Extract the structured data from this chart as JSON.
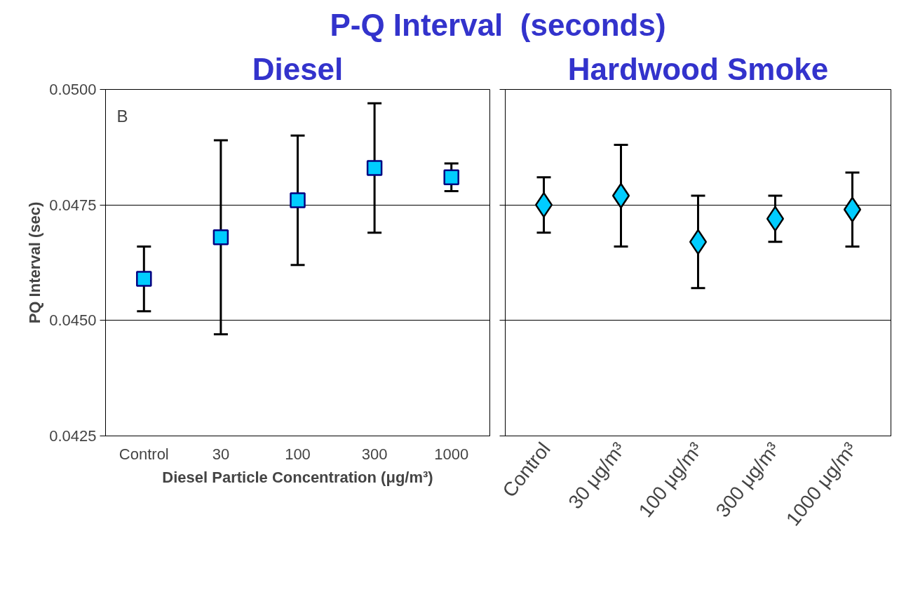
{
  "chart_data": [
    {
      "type": "scatter",
      "title": "P-Q Interval  (seconds)",
      "subtitle": "Diesel",
      "ylabel": "PQ Interval (sec)",
      "xlabel": "Diesel Particle Concentration (μg/m³)",
      "categories": [
        "Control",
        "30",
        "100",
        "300",
        "1000"
      ],
      "values": [
        0.0459,
        0.0468,
        0.0476,
        0.0483,
        0.0481
      ],
      "errors": [
        [
          0.0452,
          0.0466
        ],
        [
          0.0447,
          0.0489
        ],
        [
          0.0462,
          0.049
        ],
        [
          0.0469,
          0.0497
        ],
        [
          0.0478,
          0.0484
        ]
      ],
      "color": "#00ccff",
      "marker": "square",
      "grid": "y",
      "ylim": [
        0.0425,
        0.05
      ],
      "yticks": [
        {
          "value": 0.0425,
          "label": "0.0425"
        },
        {
          "value": 0.045,
          "label": "0.0450"
        },
        {
          "value": 0.0475,
          "label": "0.0475"
        },
        {
          "value": 0.05,
          "label": "0.0500"
        }
      ],
      "annotations": [
        "B"
      ]
    },
    {
      "type": "scatter",
      "subtitle": "Hardwood Smoke",
      "categories": [
        "Control",
        "30 μg/m³",
        "100 μg/m³",
        "300 μg/m³",
        "1000 μg/m³"
      ],
      "values": [
        0.0475,
        0.0477,
        0.0467,
        0.0472,
        0.0474
      ],
      "errors": [
        [
          0.0469,
          0.0481
        ],
        [
          0.0466,
          0.0488
        ],
        [
          0.0457,
          0.0477
        ],
        [
          0.0467,
          0.0477
        ],
        [
          0.0466,
          0.0482
        ]
      ],
      "color": "#00ccff",
      "marker": "diamond",
      "grid": "y",
      "ylim": [
        0.0425,
        0.05
      ],
      "yticks": [
        0.0425,
        0.045,
        0.0475,
        0.05
      ],
      "tick_labels": "x"
    }
  ]
}
